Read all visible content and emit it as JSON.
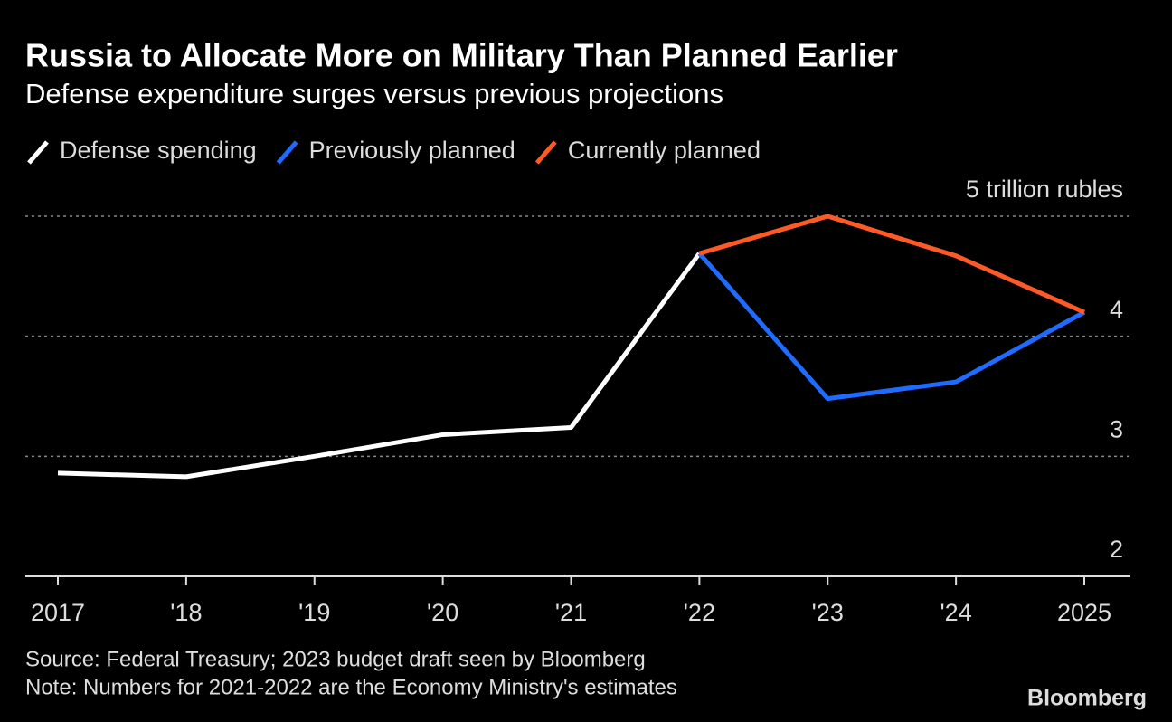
{
  "chart_data": {
    "type": "line",
    "title": "Russia to Allocate More on Military Than Planned Earlier",
    "subtitle": "Defense expenditure surges versus previous projections",
    "categories": [
      "2017",
      "'18",
      "'19",
      "'20",
      "'21",
      "'22",
      "'23",
      "'24",
      "2025"
    ],
    "series": [
      {
        "name": "Defense spending",
        "color": "#ffffff",
        "values": [
          2.86,
          2.83,
          3.0,
          3.18,
          3.24,
          4.69,
          null,
          null,
          null
        ]
      },
      {
        "name": "Previously planned",
        "color": "#1f6bff",
        "values": [
          null,
          null,
          null,
          null,
          null,
          4.69,
          3.48,
          3.62,
          4.2
        ]
      },
      {
        "name": "Currently planned",
        "color": "#ff5a26",
        "values": [
          null,
          null,
          null,
          null,
          null,
          4.69,
          5.0,
          4.67,
          4.2
        ]
      }
    ],
    "ylim": [
      2,
      5
    ],
    "yticks": [
      2,
      3,
      4,
      {
        "value": 5,
        "label": "5 trillion rubles"
      }
    ],
    "grid": true,
    "legend": "top-left",
    "source": "Source: Federal Treasury; 2023 budget draft seen by Bloomberg",
    "note": "Note: Numbers for 2021-2022 are the Economy Ministry's estimates",
    "brand": "Bloomberg"
  }
}
